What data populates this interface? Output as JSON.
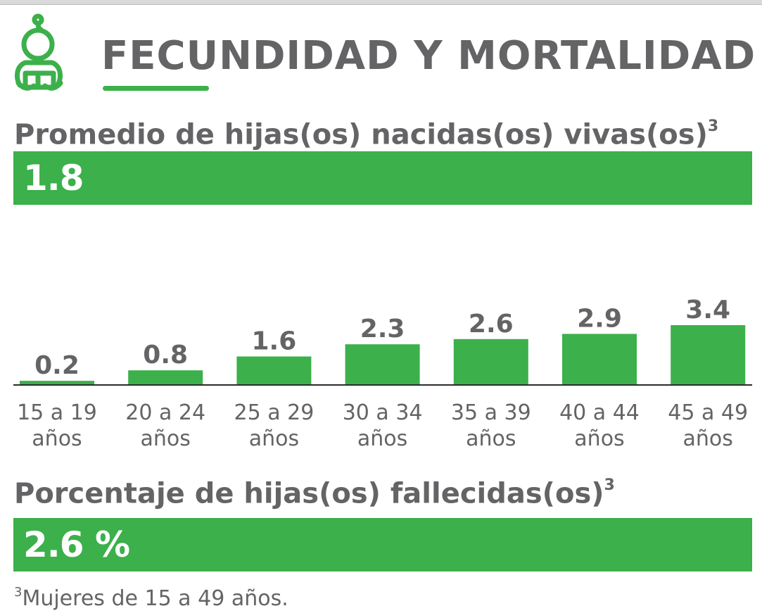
{
  "header": {
    "title": "FECUNDIDAD Y MORTALIDAD"
  },
  "section1": {
    "title": "Promedio de hijas(os) nacidas(os) vivas(os)",
    "sup": "3",
    "value": "1.8"
  },
  "section2": {
    "title": "Porcentaje de hijas(os) fallecidas(os)",
    "sup": "3",
    "value": "2.6 %"
  },
  "footnote": {
    "sup": "3",
    "text": "Mujeres de 15 a 49 años."
  },
  "colors": {
    "accent": "#3cb04a",
    "text": "#646466"
  },
  "chart_data": {
    "type": "bar",
    "categories": [
      [
        "15 a 19",
        "años"
      ],
      [
        "20 a 24",
        "años"
      ],
      [
        "25 a 29",
        "años"
      ],
      [
        "30 a 34",
        "años"
      ],
      [
        "35 a 39",
        "años"
      ],
      [
        "40 a 44",
        "años"
      ],
      [
        "45 a 49",
        "años"
      ]
    ],
    "values": [
      0.2,
      0.8,
      1.6,
      2.3,
      2.6,
      2.9,
      3.4
    ],
    "value_labels": [
      "0.2",
      "0.8",
      "1.6",
      "2.3",
      "2.6",
      "2.9",
      "3.4"
    ],
    "title": "",
    "xlabel": "",
    "ylabel": "",
    "ylim": [
      0,
      3.4
    ],
    "grid": false,
    "legend": "none"
  }
}
